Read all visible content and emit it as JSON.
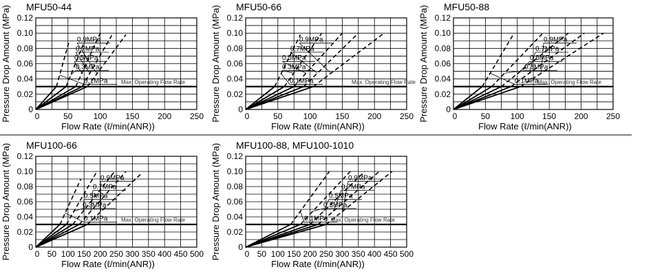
{
  "chart_data": [
    {
      "type": "line",
      "title": "MFU50-44",
      "xlabel": "Flow Rate (ℓ/min(ANR))",
      "ylabel": "Pressure Drop Amount (MPa)",
      "xlim": [
        0,
        250
      ],
      "ylim": [
        0,
        0.12
      ],
      "x_ticks": [
        "0",
        "50",
        "100",
        "150",
        "200",
        "250"
      ],
      "y_ticks": [
        "0",
        "0.02",
        "0.04",
        "0.06",
        "0.08",
        "0.10",
        "0.12"
      ],
      "grid": true,
      "threshold": {
        "y": 0.03,
        "label": "Max. Operating Flow Rate"
      },
      "series": [
        {
          "name": "0.1MPa",
          "x": [
            0,
            32,
            52
          ],
          "y": [
            0,
            0.03,
            0.09
          ]
        },
        {
          "name": "0.3MPa",
          "x": [
            0,
            47,
            76
          ],
          "y": [
            0,
            0.03,
            0.09
          ]
        },
        {
          "name": "0.5MPa",
          "x": [
            0,
            62,
            100
          ],
          "y": [
            0,
            0.03,
            0.1
          ]
        },
        {
          "name": "0.7MPa",
          "x": [
            0,
            72,
            120
          ],
          "y": [
            0,
            0.03,
            0.1
          ]
        },
        {
          "name": "0.9MPa",
          "x": [
            0,
            80,
            140
          ],
          "y": [
            0,
            0.03,
            0.098
          ]
        }
      ]
    },
    {
      "type": "line",
      "title": "MFU50-66",
      "xlabel": "Flow Rate (ℓ/min(ANR))",
      "ylabel": "Pressure Drop Amount (MPa)",
      "xlim": [
        0,
        250
      ],
      "ylim": [
        0,
        0.12
      ],
      "x_ticks": [
        "0",
        "50",
        "100",
        "150",
        "200",
        "250"
      ],
      "y_ticks": [
        "0",
        "0.02",
        "0.04",
        "0.06",
        "0.08",
        "0.10",
        "0.12"
      ],
      "grid": true,
      "threshold": {
        "y": 0.03,
        "label": "Max. Operating Flow Rate"
      },
      "series": [
        {
          "name": "0.1MPa",
          "x": [
            0,
            45,
            85
          ],
          "y": [
            0,
            0.03,
            0.098
          ]
        },
        {
          "name": "0.3MPa",
          "x": [
            0,
            60,
            118
          ],
          "y": [
            0,
            0.03,
            0.1
          ]
        },
        {
          "name": "0.5MPa",
          "x": [
            0,
            75,
            150
          ],
          "y": [
            0,
            0.03,
            0.1
          ]
        },
        {
          "name": "0.7MPa",
          "x": [
            0,
            90,
            175
          ],
          "y": [
            0,
            0.03,
            0.1
          ]
        },
        {
          "name": "0.9MPa",
          "x": [
            0,
            105,
            215
          ],
          "y": [
            0,
            0.03,
            0.1
          ]
        }
      ]
    },
    {
      "type": "line",
      "title": "MFU50-88",
      "xlabel": "Flow Rate (ℓ/min(ANR))",
      "ylabel": "Pressure Drop Amount (MPa)",
      "xlim": [
        0,
        250
      ],
      "ylim": [
        0,
        0.12
      ],
      "x_ticks": [
        "0",
        "50",
        "100",
        "150",
        "200",
        "250"
      ],
      "y_ticks": [
        "0",
        "0.02",
        "0.04",
        "0.06",
        "0.08",
        "0.10",
        "0.12"
      ],
      "grid": true,
      "threshold": {
        "y": 0.03,
        "label": "Max. Operating Flow Rate"
      },
      "series": [
        {
          "name": "0.1MPa",
          "x": [
            0,
            45,
            95
          ],
          "y": [
            0,
            0.03,
            0.1
          ]
        },
        {
          "name": "0.3MPa",
          "x": [
            0,
            60,
            140
          ],
          "y": [
            0,
            0.03,
            0.1
          ]
        },
        {
          "name": "0.5MPa",
          "x": [
            0,
            75,
            180
          ],
          "y": [
            0,
            0.03,
            0.1
          ]
        },
        {
          "name": "0.7MPa",
          "x": [
            0,
            90,
            205
          ],
          "y": [
            0,
            0.03,
            0.1
          ]
        },
        {
          "name": "0.9MPa",
          "x": [
            0,
            105,
            235
          ],
          "y": [
            0,
            0.03,
            0.1
          ]
        }
      ]
    },
    {
      "type": "line",
      "title": "MFU100-66",
      "xlabel": "Flow Rate (ℓ/min(ANR))",
      "ylabel": "Pressure Drop Amount (MPa)",
      "xlim": [
        0,
        500
      ],
      "ylim": [
        0,
        0.12
      ],
      "x_ticks": [
        "0",
        "50",
        "100",
        "150",
        "200",
        "250",
        "300",
        "350",
        "400",
        "450",
        "500"
      ],
      "y_ticks": [
        "0",
        "0.02",
        "0.04",
        "0.06",
        "0.08",
        "0.10",
        "0.12"
      ],
      "grid": true,
      "threshold": {
        "y": 0.03,
        "label": "Max. Operating Flow Rate"
      },
      "series": [
        {
          "name": "0.1MPa",
          "x": [
            0,
            75,
            140
          ],
          "y": [
            0,
            0.03,
            0.09
          ]
        },
        {
          "name": "0.3MPa",
          "x": [
            0,
            95,
            190
          ],
          "y": [
            0,
            0.03,
            0.1
          ]
        },
        {
          "name": "0.5MPa",
          "x": [
            0,
            115,
            245
          ],
          "y": [
            0,
            0.03,
            0.1
          ]
        },
        {
          "name": "0.7MPa",
          "x": [
            0,
            135,
            280
          ],
          "y": [
            0,
            0.03,
            0.1
          ]
        },
        {
          "name": "0.9MPa",
          "x": [
            0,
            160,
            330
          ],
          "y": [
            0,
            0.03,
            0.098
          ]
        }
      ]
    },
    {
      "type": "line",
      "title": "MFU100-88, MFU100-1010",
      "xlabel": "Flow Rate (ℓ/min(ANR))",
      "ylabel": "Pressure Drop Amount (MPa)",
      "xlim": [
        0,
        500
      ],
      "ylim": [
        0,
        0.12
      ],
      "x_ticks": [
        "0",
        "50",
        "100",
        "150",
        "200",
        "250",
        "300",
        "350",
        "400",
        "450",
        "500"
      ],
      "y_ticks": [
        "0",
        "0.02",
        "0.04",
        "0.06",
        "0.08",
        "0.10",
        "0.12"
      ],
      "grid": true,
      "threshold": {
        "y": 0.03,
        "label": "Max. Operating Flow Rate"
      },
      "series": [
        {
          "name": "0.1MPa",
          "x": [
            0,
            140,
            260
          ],
          "y": [
            0,
            0.03,
            0.1
          ]
        },
        {
          "name": "0.3MPa",
          "x": [
            0,
            170,
            325
          ],
          "y": [
            0,
            0.03,
            0.1
          ]
        },
        {
          "name": "0.5MPa",
          "x": [
            0,
            200,
            370
          ],
          "y": [
            0,
            0.03,
            0.1
          ]
        },
        {
          "name": "0.7MPa",
          "x": [
            0,
            225,
            415
          ],
          "y": [
            0,
            0.03,
            0.1
          ]
        },
        {
          "name": "0.9MPa",
          "x": [
            0,
            250,
            455
          ],
          "y": [
            0,
            0.03,
            0.1
          ]
        }
      ]
    }
  ]
}
